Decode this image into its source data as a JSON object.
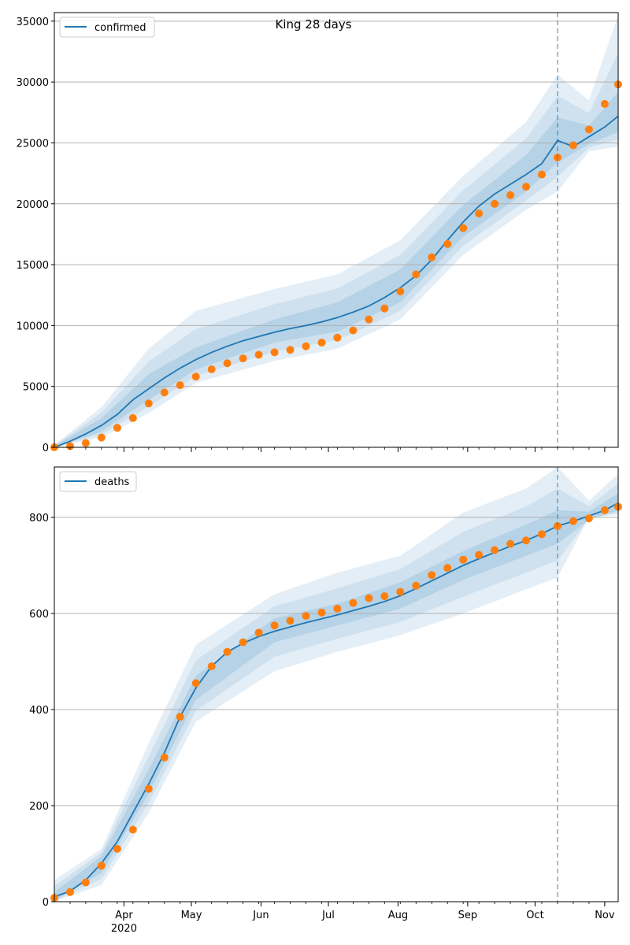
{
  "figure": {
    "title": "King 28 days"
  },
  "colors": {
    "model_line": "#1f77b4",
    "observed_points": "#ff7f0e",
    "band": "#1f77b4",
    "grid": "#b0b0b0",
    "forecast_divider": "#1f77b4"
  },
  "chart_data": [
    {
      "type": "line",
      "panel": "top",
      "title": "King 28 days",
      "legend": {
        "entries": [
          "confirmed"
        ],
        "placement": "top-left"
      },
      "xlabel": "",
      "ylabel": "",
      "x_axis": {
        "start": "2020-03-01",
        "end": "2020-11-07",
        "month_ticks": [
          {
            "label": "Apr",
            "sub": "2020",
            "date": "2020-04-01"
          },
          {
            "label": "May",
            "date": "2020-05-01"
          },
          {
            "label": "Jun",
            "date": "2020-06-01"
          },
          {
            "label": "Jul",
            "date": "2020-07-01"
          },
          {
            "label": "Aug",
            "date": "2020-08-01"
          },
          {
            "label": "Sep",
            "date": "2020-09-01"
          },
          {
            "label": "Oct",
            "date": "2020-10-01"
          },
          {
            "label": "Nov",
            "date": "2020-11-01"
          }
        ]
      },
      "forecast_start": "2020-10-11",
      "ylim": [
        0,
        35700
      ],
      "yticks": [
        0,
        5000,
        10000,
        15000,
        20000,
        25000,
        30000,
        35000
      ],
      "grid": "horizontal",
      "series": [
        {
          "name": "confirmed",
          "kind": "model",
          "points": [
            [
              "2020-03-01",
              0
            ],
            [
              "2020-03-08",
              500
            ],
            [
              "2020-03-15",
              1100
            ],
            [
              "2020-03-22",
              1800
            ],
            [
              "2020-03-29",
              2700
            ],
            [
              "2020-04-05",
              3900
            ],
            [
              "2020-04-12",
              4800
            ],
            [
              "2020-04-19",
              5700
            ],
            [
              "2020-04-26",
              6500
            ],
            [
              "2020-05-03",
              7200
            ],
            [
              "2020-05-10",
              7800
            ],
            [
              "2020-05-17",
              8300
            ],
            [
              "2020-05-24",
              8750
            ],
            [
              "2020-05-31",
              9100
            ],
            [
              "2020-06-07",
              9450
            ],
            [
              "2020-06-14",
              9750
            ],
            [
              "2020-06-21",
              10000
            ],
            [
              "2020-06-28",
              10300
            ],
            [
              "2020-07-05",
              10650
            ],
            [
              "2020-07-12",
              11100
            ],
            [
              "2020-07-19",
              11600
            ],
            [
              "2020-07-26",
              12300
            ],
            [
              "2020-08-02",
              13100
            ],
            [
              "2020-08-09",
              14100
            ],
            [
              "2020-08-16",
              15400
            ],
            [
              "2020-08-23",
              17000
            ],
            [
              "2020-08-30",
              18500
            ],
            [
              "2020-09-06",
              19800
            ],
            [
              "2020-09-13",
              20800
            ],
            [
              "2020-09-20",
              21600
            ],
            [
              "2020-09-27",
              22400
            ],
            [
              "2020-10-04",
              23300
            ],
            [
              "2020-10-11",
              25200
            ],
            [
              "2020-10-18",
              24700
            ],
            [
              "2020-10-25",
              25500
            ],
            [
              "2020-11-01",
              26300
            ],
            [
              "2020-11-07",
              27200
            ]
          ],
          "band_outer": [
            [
              "2020-03-01",
              0,
              200
            ],
            [
              "2020-03-22",
              800,
              3300
            ],
            [
              "2020-04-12",
              2800,
              8100
            ],
            [
              "2020-05-03",
              5300,
              11200
            ],
            [
              "2020-06-07",
              7100,
              13000
            ],
            [
              "2020-07-05",
              8100,
              14200
            ],
            [
              "2020-08-02",
              10500,
              17000
            ],
            [
              "2020-08-30",
              15800,
              22300
            ],
            [
              "2020-09-27",
              19500,
              26700
            ],
            [
              "2020-10-11",
              21000,
              30600
            ],
            [
              "2020-10-25",
              24300,
              28500
            ],
            [
              "2020-11-07",
              24700,
              35500
            ]
          ],
          "band_inner": [
            [
              "2020-03-01",
              0,
              100
            ],
            [
              "2020-03-22",
              1300,
              2400
            ],
            [
              "2020-04-12",
              3900,
              6000
            ],
            [
              "2020-05-03",
              6400,
              8200
            ],
            [
              "2020-06-07",
              8600,
              10500
            ],
            [
              "2020-07-05",
              9500,
              11900
            ],
            [
              "2020-08-02",
              11900,
              14600
            ],
            [
              "2020-08-30",
              17300,
              19900
            ],
            [
              "2020-09-27",
              21000,
              24000
            ],
            [
              "2020-10-11",
              23400,
              27100
            ],
            [
              "2020-10-25",
              24900,
              26400
            ],
            [
              "2020-11-07",
              25900,
              29200
            ]
          ]
        },
        {
          "name": "observed confirmed",
          "kind": "observed",
          "points": [
            [
              "2020-03-01",
              0
            ],
            [
              "2020-03-08",
              100
            ],
            [
              "2020-03-15",
              350
            ],
            [
              "2020-03-22",
              800
            ],
            [
              "2020-03-29",
              1600
            ],
            [
              "2020-04-05",
              2400
            ],
            [
              "2020-04-12",
              3600
            ],
            [
              "2020-04-19",
              4500
            ],
            [
              "2020-04-26",
              5100
            ],
            [
              "2020-05-03",
              5800
            ],
            [
              "2020-05-10",
              6400
            ],
            [
              "2020-05-17",
              6900
            ],
            [
              "2020-05-24",
              7300
            ],
            [
              "2020-05-31",
              7600
            ],
            [
              "2020-06-07",
              7800
            ],
            [
              "2020-06-14",
              8000
            ],
            [
              "2020-06-21",
              8300
            ],
            [
              "2020-06-28",
              8600
            ],
            [
              "2020-07-05",
              9000
            ],
            [
              "2020-07-12",
              9600
            ],
            [
              "2020-07-19",
              10500
            ],
            [
              "2020-07-26",
              11400
            ],
            [
              "2020-08-02",
              12800
            ],
            [
              "2020-08-09",
              14200
            ],
            [
              "2020-08-16",
              15600
            ],
            [
              "2020-08-23",
              16700
            ],
            [
              "2020-08-30",
              18000
            ],
            [
              "2020-09-06",
              19200
            ],
            [
              "2020-09-13",
              20000
            ],
            [
              "2020-09-20",
              20700
            ],
            [
              "2020-09-27",
              21400
            ],
            [
              "2020-10-04",
              22400
            ],
            [
              "2020-10-11",
              23800
            ],
            [
              "2020-10-18",
              24800
            ],
            [
              "2020-10-25",
              26100
            ],
            [
              "2020-11-01",
              28200
            ],
            [
              "2020-11-07",
              29800
            ]
          ]
        }
      ]
    },
    {
      "type": "line",
      "panel": "bottom",
      "title": "",
      "legend": {
        "entries": [
          "deaths"
        ],
        "placement": "top-left"
      },
      "xlabel": "",
      "ylabel": "",
      "x_axis": {
        "start": "2020-03-01",
        "end": "2020-11-07",
        "month_ticks": [
          {
            "label": "Apr",
            "sub": "2020",
            "date": "2020-04-01"
          },
          {
            "label": "May",
            "date": "2020-05-01"
          },
          {
            "label": "Jun",
            "date": "2020-06-01"
          },
          {
            "label": "Jul",
            "date": "2020-07-01"
          },
          {
            "label": "Aug",
            "date": "2020-08-01"
          },
          {
            "label": "Sep",
            "date": "2020-09-01"
          },
          {
            "label": "Oct",
            "date": "2020-10-01"
          },
          {
            "label": "Nov",
            "date": "2020-11-01"
          }
        ]
      },
      "forecast_start": "2020-10-11",
      "ylim": [
        0,
        905
      ],
      "yticks": [
        0,
        200,
        400,
        600,
        800
      ],
      "grid": "horizontal",
      "series": [
        {
          "name": "deaths",
          "kind": "model",
          "points": [
            [
              "2020-03-01",
              10
            ],
            [
              "2020-03-08",
              22
            ],
            [
              "2020-03-15",
              45
            ],
            [
              "2020-03-22",
              80
            ],
            [
              "2020-03-29",
              125
            ],
            [
              "2020-04-05",
              185
            ],
            [
              "2020-04-12",
              245
            ],
            [
              "2020-04-19",
              310
            ],
            [
              "2020-04-26",
              385
            ],
            [
              "2020-05-03",
              445
            ],
            [
              "2020-05-10",
              490
            ],
            [
              "2020-05-17",
              520
            ],
            [
              "2020-05-24",
              538
            ],
            [
              "2020-05-31",
              552
            ],
            [
              "2020-06-07",
              563
            ],
            [
              "2020-06-14",
              572
            ],
            [
              "2020-06-21",
              581
            ],
            [
              "2020-06-28",
              589
            ],
            [
              "2020-07-05",
              597
            ],
            [
              "2020-07-12",
              606
            ],
            [
              "2020-07-19",
              615
            ],
            [
              "2020-07-26",
              625
            ],
            [
              "2020-08-02",
              637
            ],
            [
              "2020-08-09",
              652
            ],
            [
              "2020-08-16",
              668
            ],
            [
              "2020-08-23",
              684
            ],
            [
              "2020-08-30",
              700
            ],
            [
              "2020-09-06",
              714
            ],
            [
              "2020-09-13",
              727
            ],
            [
              "2020-09-20",
              740
            ],
            [
              "2020-09-27",
              752
            ],
            [
              "2020-10-04",
              766
            ],
            [
              "2020-10-11",
              782
            ],
            [
              "2020-10-18",
              792
            ],
            [
              "2020-10-25",
              803
            ],
            [
              "2020-11-01",
              815
            ],
            [
              "2020-11-07",
              830
            ]
          ],
          "band_outer": [
            [
              "2020-03-01",
              0,
              45
            ],
            [
              "2020-03-22",
              35,
              110
            ],
            [
              "2020-04-12",
              185,
              330
            ],
            [
              "2020-05-03",
              375,
              535
            ],
            [
              "2020-06-07",
              480,
              640
            ],
            [
              "2020-07-05",
              520,
              685
            ],
            [
              "2020-08-02",
              555,
              720
            ],
            [
              "2020-08-30",
              600,
              810
            ],
            [
              "2020-09-27",
              650,
              860
            ],
            [
              "2020-10-11",
              675,
              905
            ],
            [
              "2020-10-25",
              800,
              835
            ],
            [
              "2020-11-07",
              805,
              890
            ]
          ],
          "band_inner": [
            [
              "2020-03-01",
              3,
              20
            ],
            [
              "2020-03-22",
              60,
              95
            ],
            [
              "2020-04-12",
              225,
              275
            ],
            [
              "2020-05-03",
              420,
              470
            ],
            [
              "2020-06-07",
              540,
              590
            ],
            [
              "2020-07-05",
              575,
              620
            ],
            [
              "2020-08-02",
              610,
              665
            ],
            [
              "2020-08-30",
              670,
              730
            ],
            [
              "2020-09-27",
              720,
              785
            ],
            [
              "2020-10-11",
              745,
              815
            ],
            [
              "2020-10-25",
              795,
              812
            ],
            [
              "2020-11-07",
              815,
              850
            ]
          ]
        },
        {
          "name": "observed deaths",
          "kind": "observed",
          "points": [
            [
              "2020-03-01",
              8
            ],
            [
              "2020-03-08",
              20
            ],
            [
              "2020-03-15",
              40
            ],
            [
              "2020-03-22",
              75
            ],
            [
              "2020-03-29",
              110
            ],
            [
              "2020-04-05",
              150
            ],
            [
              "2020-04-12",
              235
            ],
            [
              "2020-04-19",
              300
            ],
            [
              "2020-04-26",
              385
            ],
            [
              "2020-05-03",
              455
            ],
            [
              "2020-05-10",
              490
            ],
            [
              "2020-05-17",
              520
            ],
            [
              "2020-05-24",
              540
            ],
            [
              "2020-05-31",
              560
            ],
            [
              "2020-06-07",
              575
            ],
            [
              "2020-06-14",
              585
            ],
            [
              "2020-06-21",
              595
            ],
            [
              "2020-06-28",
              602
            ],
            [
              "2020-07-05",
              610
            ],
            [
              "2020-07-12",
              622
            ],
            [
              "2020-07-19",
              632
            ],
            [
              "2020-07-26",
              636
            ],
            [
              "2020-08-02",
              645
            ],
            [
              "2020-08-09",
              658
            ],
            [
              "2020-08-16",
              680
            ],
            [
              "2020-08-23",
              695
            ],
            [
              "2020-08-30",
              712
            ],
            [
              "2020-09-06",
              722
            ],
            [
              "2020-09-13",
              732
            ],
            [
              "2020-09-20",
              745
            ],
            [
              "2020-09-27",
              752
            ],
            [
              "2020-10-04",
              765
            ],
            [
              "2020-10-11",
              782
            ],
            [
              "2020-10-18",
              792
            ],
            [
              "2020-10-25",
              798
            ],
            [
              "2020-11-01",
              815
            ],
            [
              "2020-11-07",
              822
            ]
          ]
        }
      ]
    }
  ]
}
